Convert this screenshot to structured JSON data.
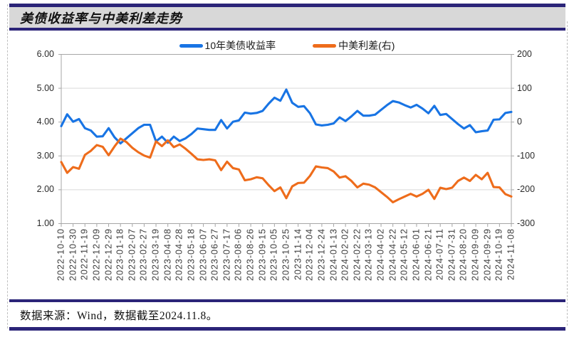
{
  "title": "美债收益率与中美利差走势",
  "footer": {
    "text": "数据来源：Wind，数据截至2024.11.8。"
  },
  "legend": {
    "items": [
      {
        "label": "10年美债收益率",
        "series": "us10y",
        "color": "#1874e4"
      },
      {
        "label": "中美利差(右)",
        "series": "spread",
        "color": "#ee6c1b"
      }
    ]
  },
  "left_axis": {
    "ticks": [
      "6.00",
      "5.00",
      "4.00",
      "3.00",
      "2.00",
      "1.00"
    ],
    "min": 1.0,
    "max": 6.0
  },
  "right_axis": {
    "ticks": [
      "200",
      "100",
      "0",
      "-100",
      "-200",
      "-300"
    ],
    "min": -300,
    "max": 200
  },
  "x_axis": {
    "labels": [
      "2022-10-10",
      "2022-10-30",
      "2022-11-19",
      "2022-12-09",
      "2022-12-29",
      "2023-01-18",
      "2023-02-07",
      "2023-02-27",
      "2023-03-19",
      "2023-04-08",
      "2023-04-28",
      "2023-05-18",
      "2023-06-07",
      "2023-06-27",
      "2023-07-17",
      "2023-08-06",
      "2023-08-26",
      "2023-09-15",
      "2023-10-05",
      "2023-10-25",
      "2023-11-14",
      "2023-12-04",
      "2023-12-24",
      "2024-01-13",
      "2024-02-02",
      "2024-02-22",
      "2024-03-13",
      "2024-04-02",
      "2024-04-22",
      "2024-05-12",
      "2024-06-01",
      "2024-06-21",
      "2024-07-11",
      "2024-07-31",
      "2024-08-20",
      "2024-09-09",
      "2024-09-29",
      "2024-10-19",
      "2024-11-08"
    ]
  },
  "colors": {
    "accent_navy": "#2b2478",
    "header_bg": "#d8d8d8",
    "blue_line": "#1874e4",
    "orange_line": "#ee6c1b",
    "gridline": "#d9d9d9",
    "axis_border": "#a6a6a6"
  },
  "chart_data": {
    "type": "line",
    "title": "美债收益率与中美利差走势",
    "legend_position": "top",
    "grid": true,
    "left_ylim": [
      1.0,
      6.0
    ],
    "right_ylim": [
      -300,
      200
    ],
    "x": [
      "2022-10-10",
      "2022-10-20",
      "2022-10-30",
      "2022-11-09",
      "2022-11-19",
      "2022-11-29",
      "2022-12-09",
      "2022-12-19",
      "2022-12-29",
      "2023-01-08",
      "2023-01-18",
      "2023-01-28",
      "2023-02-07",
      "2023-02-17",
      "2023-02-27",
      "2023-03-09",
      "2023-03-19",
      "2023-03-29",
      "2023-04-08",
      "2023-04-18",
      "2023-04-28",
      "2023-05-08",
      "2023-05-18",
      "2023-05-28",
      "2023-06-07",
      "2023-06-17",
      "2023-06-27",
      "2023-07-07",
      "2023-07-17",
      "2023-07-27",
      "2023-08-06",
      "2023-08-16",
      "2023-08-26",
      "2023-09-05",
      "2023-09-15",
      "2023-09-25",
      "2023-10-05",
      "2023-10-15",
      "2023-10-25",
      "2023-11-04",
      "2023-11-14",
      "2023-11-24",
      "2023-12-04",
      "2023-12-14",
      "2023-12-24",
      "2024-01-03",
      "2024-01-13",
      "2024-01-23",
      "2024-02-02",
      "2024-02-12",
      "2024-02-22",
      "2024-03-03",
      "2024-03-13",
      "2024-03-23",
      "2024-04-02",
      "2024-04-12",
      "2024-04-22",
      "2024-05-02",
      "2024-05-12",
      "2024-05-22",
      "2024-06-01",
      "2024-06-11",
      "2024-06-21",
      "2024-07-01",
      "2024-07-11",
      "2024-07-21",
      "2024-07-31",
      "2024-08-10",
      "2024-08-20",
      "2024-08-30",
      "2024-09-09",
      "2024-09-19",
      "2024-09-29",
      "2024-10-09",
      "2024-10-19",
      "2024-10-29",
      "2024-11-08"
    ],
    "series": [
      {
        "name": "10年美债收益率",
        "id": "us10y",
        "axis": "left",
        "color": "#1874e4",
        "values": [
          3.88,
          4.23,
          4.01,
          4.09,
          3.82,
          3.75,
          3.57,
          3.58,
          3.82,
          3.55,
          3.37,
          3.52,
          3.67,
          3.82,
          3.92,
          3.92,
          3.43,
          3.57,
          3.39,
          3.57,
          3.44,
          3.52,
          3.65,
          3.81,
          3.79,
          3.77,
          3.77,
          4.06,
          3.81,
          4.01,
          4.05,
          4.28,
          4.25,
          4.27,
          4.33,
          4.54,
          4.72,
          4.63,
          4.96,
          4.57,
          4.45,
          4.47,
          4.26,
          3.93,
          3.9,
          3.92,
          3.96,
          4.14,
          4.03,
          4.17,
          4.33,
          4.19,
          4.19,
          4.22,
          4.36,
          4.5,
          4.62,
          4.58,
          4.5,
          4.43,
          4.51,
          4.4,
          4.26,
          4.48,
          4.21,
          4.24,
          4.09,
          3.94,
          3.81,
          3.91,
          3.7,
          3.73,
          3.75,
          4.07,
          4.08,
          4.27,
          4.3
        ]
      },
      {
        "name": "中美利差(右)",
        "id": "spread",
        "axis": "right",
        "color": "#ee6c1b",
        "values": [
          -118,
          -150,
          -133,
          -138,
          -97,
          -85,
          -68,
          -73,
          -98,
          -72,
          -49,
          -59,
          -76,
          -89,
          -99,
          -105,
          -57,
          -71,
          -54,
          -74,
          -66,
          -79,
          -94,
          -110,
          -112,
          -110,
          -113,
          -142,
          -117,
          -136,
          -140,
          -172,
          -169,
          -163,
          -166,
          -186,
          -204,
          -193,
          -225,
          -190,
          -180,
          -179,
          -159,
          -131,
          -134,
          -136,
          -146,
          -164,
          -160,
          -174,
          -193,
          -182,
          -185,
          -193,
          -207,
          -221,
          -237,
          -228,
          -220,
          -212,
          -220,
          -212,
          -200,
          -227,
          -194,
          -198,
          -194,
          -174,
          -164,
          -174,
          -156,
          -169,
          -150,
          -192,
          -193,
          -213,
          -220
        ]
      }
    ]
  }
}
